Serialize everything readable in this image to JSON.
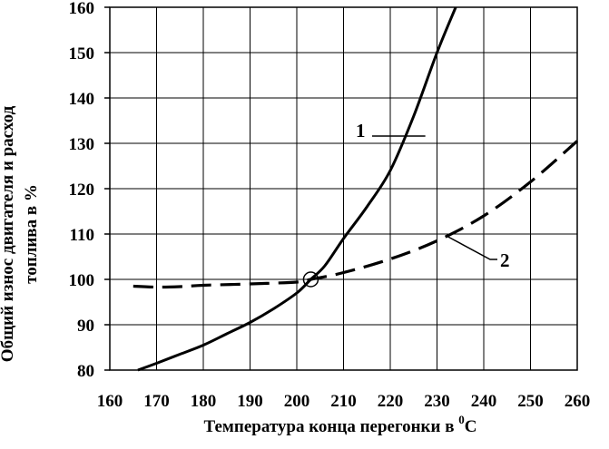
{
  "chart_data": {
    "type": "line",
    "xlabel": "Температура конца перегонки в ",
    "xlabel_unit": "C",
    "xlabel_sup": "0",
    "ylabel_line1": "Общий износ двигателя и расход",
    "ylabel_line2": "топлива в %",
    "xlim": [
      160,
      260
    ],
    "ylim": [
      80,
      160
    ],
    "x_ticks": [
      "160",
      "170",
      "180",
      "190",
      "200",
      "210",
      "220",
      "230",
      "240",
      "250",
      "260"
    ],
    "y_ticks": [
      "80",
      "90",
      "100",
      "110",
      "120",
      "130",
      "140",
      "150",
      "160"
    ],
    "grid": true,
    "series": [
      {
        "label": "1",
        "style": "solid",
        "x": [
          166,
          170,
          175,
          180,
          185,
          190,
          195,
          200,
          203,
          206,
          210,
          215,
          220,
          225,
          230,
          234
        ],
        "y": [
          80,
          81.5,
          83.5,
          85.5,
          88,
          90.5,
          93.5,
          97,
          100,
          103,
          109,
          116,
          124,
          136,
          150,
          160
        ]
      },
      {
        "label": "2",
        "style": "dashed",
        "x": [
          165,
          170,
          175,
          180,
          190,
          200,
          203,
          210,
          220,
          230,
          240,
          250,
          260
        ],
        "y": [
          98.5,
          98.3,
          98.4,
          98.7,
          99,
          99.4,
          100,
          101.5,
          104.5,
          108.5,
          114,
          121.5,
          130.5
        ]
      }
    ],
    "intersection": {
      "x": 203,
      "y": 100
    },
    "callouts": [
      {
        "text": "1",
        "series": 0,
        "point_x": 227.5,
        "point_y": 133
      },
      {
        "text": "2",
        "series": 1,
        "point_x": 232,
        "point_y": 110
      }
    ]
  }
}
